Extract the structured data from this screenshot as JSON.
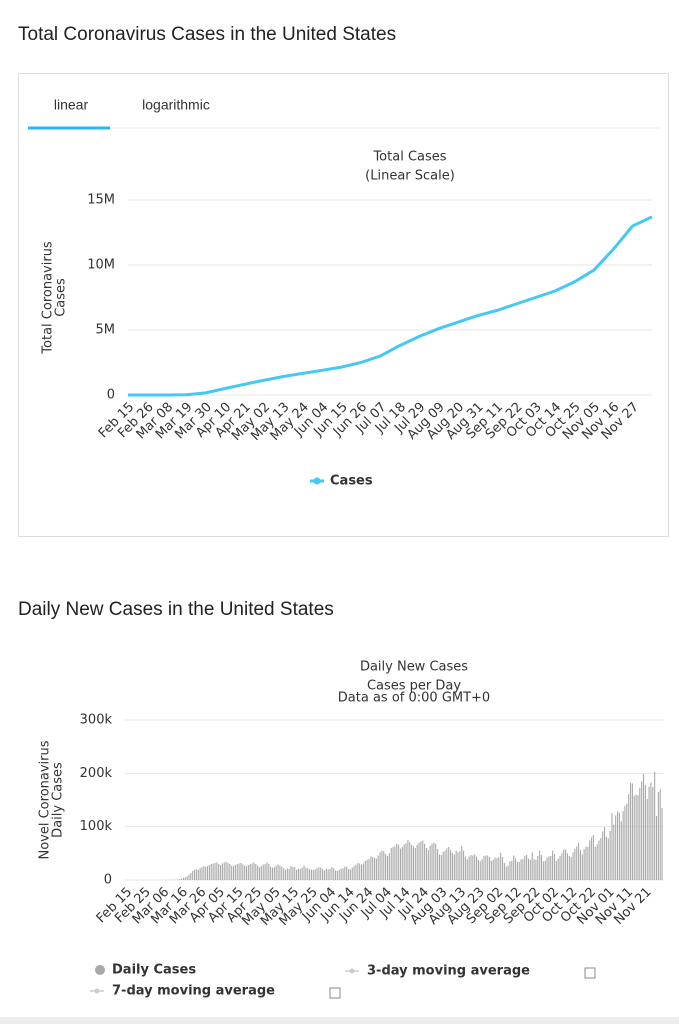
{
  "headings": [
    "Total Coronavirus Cases in the United States",
    "Daily New Cases in the United States"
  ],
  "tabs": [
    "linear",
    "logarithmic"
  ],
  "active_tab": 0,
  "chart_data": [
    {
      "type": "line",
      "title": "Total Cases",
      "subtitle": [
        "(Linear Scale)"
      ],
      "y_label": [
        "Total Coronavirus",
        "Cases"
      ],
      "categories": [
        "Feb 15",
        "Feb 26",
        "Mar 08",
        "Mar 19",
        "Mar 30",
        "Apr 10",
        "Apr 21",
        "May 02",
        "May 13",
        "May 24",
        "Jun 04",
        "Jun 15",
        "Jun 26",
        "Jul 07",
        "Jul 18",
        "Jul 29",
        "Aug 09",
        "Aug 20",
        "Aug 31",
        "Sep 11",
        "Sep 22",
        "Oct 03",
        "Oct 14",
        "Oct 25",
        "Nov 05",
        "Nov 16",
        "Nov 27",
        null
      ],
      "series": [
        {
          "name": "Cases",
          "color": "#45c8f2",
          "values": [
            0,
            0,
            500,
            14000,
            160000,
            500000,
            820000,
            1130000,
            1420000,
            1660000,
            1900000,
            2150000,
            2500000,
            3000000,
            3800000,
            4500000,
            5100000,
            5600000,
            6100000,
            6500000,
            7000000,
            7500000,
            8000000,
            8700000,
            9600000,
            11200000,
            13000000,
            13700000
          ]
        }
      ],
      "ylim": [
        0,
        15000000
      ],
      "yticks": [
        0,
        {
          "value": 5000000,
          "label": "5M"
        },
        {
          "value": 10000000,
          "label": "10M"
        },
        {
          "value": 15000000,
          "label": "15M"
        }
      ],
      "grid": true
    },
    {
      "type": "bar",
      "title": "Daily New Cases",
      "subtitle": [
        "Cases per Day",
        "Data as of 0:00 GMT+0"
      ],
      "y_label": [
        "Novel Coronavirus",
        "Daily Cases"
      ],
      "categories": [
        "Feb 15",
        null,
        null,
        null,
        null,
        null,
        null,
        null,
        null,
        null,
        "Feb 25",
        null,
        null,
        null,
        null,
        null,
        null,
        null,
        null,
        null,
        "Mar 06",
        null,
        null,
        null,
        null,
        null,
        null,
        null,
        null,
        null,
        "Mar 16",
        null,
        null,
        null,
        null,
        null,
        null,
        null,
        null,
        null,
        "Mar 26",
        null,
        null,
        null,
        null,
        null,
        null,
        null,
        null,
        null,
        "Apr 05",
        null,
        null,
        null,
        null,
        null,
        null,
        null,
        null,
        null,
        "Apr 15",
        null,
        null,
        null,
        null,
        null,
        null,
        null,
        null,
        null,
        "Apr 25",
        null,
        null,
        null,
        null,
        null,
        null,
        null,
        null,
        null,
        "May 05",
        null,
        null,
        null,
        null,
        null,
        null,
        null,
        null,
        null,
        "May 15",
        null,
        null,
        null,
        null,
        null,
        null,
        null,
        null,
        null,
        "May 25",
        null,
        null,
        null,
        null,
        null,
        null,
        null,
        null,
        null,
        "Jun 04",
        null,
        null,
        null,
        null,
        null,
        null,
        null,
        null,
        null,
        "Jun 14",
        null,
        null,
        null,
        null,
        null,
        null,
        null,
        null,
        null,
        "Jun 24",
        null,
        null,
        null,
        null,
        null,
        null,
        null,
        null,
        null,
        "Jul 04",
        null,
        null,
        null,
        null,
        null,
        null,
        null,
        null,
        null,
        "Jul 14",
        null,
        null,
        null,
        null,
        null,
        null,
        null,
        null,
        null,
        "Jul 24",
        null,
        null,
        null,
        null,
        null,
        null,
        null,
        null,
        null,
        "Aug 03",
        null,
        null,
        null,
        null,
        null,
        null,
        null,
        null,
        null,
        "Aug 13",
        null,
        null,
        null,
        null,
        null,
        null,
        null,
        null,
        null,
        "Aug 23",
        null,
        null,
        null,
        null,
        null,
        null,
        null,
        null,
        null,
        "Sep 02",
        null,
        null,
        null,
        null,
        null,
        null,
        null,
        null,
        null,
        "Sep 12",
        null,
        null,
        null,
        null,
        null,
        null,
        null,
        null,
        null,
        "Sep 22",
        null,
        null,
        null,
        null,
        null,
        null,
        null,
        null,
        null,
        "Oct 02",
        null,
        null,
        null,
        null,
        null,
        null,
        null,
        null,
        null,
        "Oct 12",
        null,
        null,
        null,
        null,
        null,
        null,
        null,
        null,
        null,
        "Oct 22",
        null,
        null,
        null,
        null,
        null,
        null,
        null,
        null,
        null,
        "Nov 01",
        null,
        null,
        null,
        null,
        null,
        null,
        null,
        null,
        null,
        "Nov 11",
        null,
        null,
        null,
        null,
        null,
        null,
        null,
        null,
        null,
        "Nov 21",
        null,
        null,
        null,
        null,
        null,
        null,
        null,
        null,
        null
      ],
      "series": [
        {
          "name": "Daily Cases",
          "color": "#a8a8a8",
          "values": [
            0,
            0,
            0,
            0,
            0,
            0,
            0,
            0,
            0,
            0,
            0,
            0,
            0,
            0,
            0,
            3,
            2,
            10,
            20,
            30,
            50,
            60,
            100,
            200,
            300,
            400,
            500,
            700,
            1000,
            1500,
            2500,
            4000,
            5000,
            7000,
            10000,
            13000,
            17000,
            19000,
            20000,
            19000,
            22000,
            24000,
            26000,
            25000,
            26000,
            28000,
            30000,
            31000,
            32000,
            33000,
            30000,
            28000,
            31000,
            33000,
            34000,
            32000,
            30000,
            27000,
            26000,
            28000,
            30000,
            31000,
            32000,
            29000,
            27000,
            26000,
            28000,
            30000,
            31000,
            33000,
            30000,
            27000,
            24000,
            26000,
            29000,
            30000,
            33000,
            30000,
            25000,
            23000,
            24000,
            27000,
            29000,
            27000,
            25000,
            22000,
            19000,
            22000,
            21000,
            26000,
            25000,
            24000,
            19000,
            21000,
            21000,
            23000,
            27000,
            23000,
            22000,
            20000,
            19000,
            19000,
            20000,
            22000,
            24000,
            23000,
            20000,
            18000,
            21000,
            20000,
            21000,
            24000,
            22000,
            18000,
            17000,
            19000,
            21000,
            22000,
            25000,
            25000,
            20000,
            20000,
            23000,
            26000,
            29000,
            32000,
            31000,
            29000,
            31000,
            36000,
            38000,
            39000,
            44000,
            43000,
            41000,
            40000,
            46000,
            52000,
            55000,
            54000,
            49000,
            45000,
            50000,
            60000,
            62000,
            63000,
            68000,
            66000,
            59000,
            62000,
            67000,
            69000,
            75000,
            71000,
            66000,
            63000,
            60000,
            66000,
            70000,
            72000,
            74000,
            68000,
            60000,
            56000,
            64000,
            68000,
            70000,
            68000,
            58000,
            48000,
            47000,
            53000,
            55000,
            59000,
            62000,
            56000,
            51000,
            48000,
            55000,
            52000,
            54000,
            64000,
            55000,
            44000,
            39000,
            44000,
            47000,
            46000,
            48000,
            44000,
            38000,
            35000,
            39000,
            45000,
            46000,
            46000,
            43000,
            36000,
            38000,
            42000,
            41000,
            43000,
            51000,
            43000,
            32000,
            25000,
            27000,
            35000,
            36000,
            46000,
            41000,
            34000,
            34000,
            39000,
            39000,
            45000,
            47000,
            40000,
            38000,
            52000,
            39000,
            38000,
            45000,
            55000,
            47000,
            35000,
            36000,
            42000,
            44000,
            45000,
            55000,
            49000,
            36000,
            40000,
            45000,
            50000,
            57000,
            57000,
            50000,
            45000,
            43000,
            52000,
            58000,
            63000,
            70000,
            56000,
            48000,
            58000,
            63000,
            62000,
            74000,
            80000,
            84000,
            62000,
            67000,
            74000,
            79000,
            91000,
            99000,
            81000,
            78000,
            92000,
            125000,
            104000,
            121000,
            128000,
            126000,
            110000,
            129000,
            139000,
            143000,
            161000,
            182000,
            181000,
            158000,
            160000,
            159000,
            173000,
            185000,
            198000,
            178000,
            152000,
            175000,
            183000,
            174000,
            203000,
            120000,
            165000,
            170000,
            135000
          ]
        },
        {
          "name": "3-day moving average",
          "color": "#cccccc",
          "visible": false
        },
        {
          "name": "7-day moving average",
          "color": "#cccccc",
          "visible": false
        }
      ],
      "ylim": [
        0,
        300000
      ],
      "yticks": [
        0,
        {
          "value": 100000,
          "label": "100k"
        },
        {
          "value": 200000,
          "label": "200k"
        },
        {
          "value": 300000,
          "label": "300k"
        }
      ],
      "grid": true
    }
  ]
}
